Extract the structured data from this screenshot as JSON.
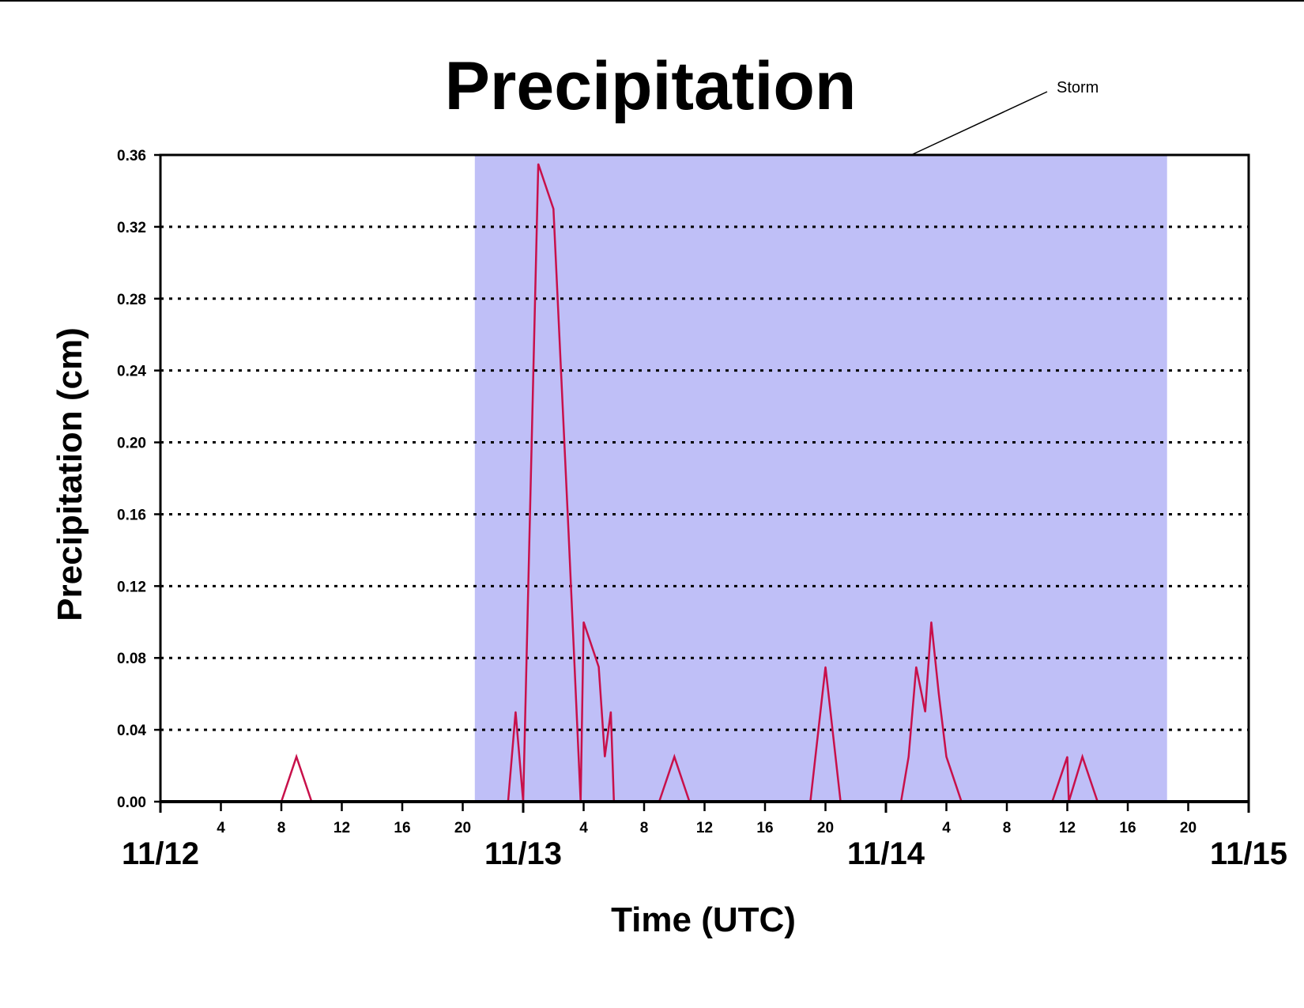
{
  "chart_data": {
    "type": "line",
    "title": "Precipitation",
    "xlabel": "Time (UTC)",
    "ylabel": "Precipitation (cm)",
    "ylim": [
      0,
      0.36
    ],
    "xlim_hours": [
      0,
      72
    ],
    "y_ticks": [
      "0.00",
      "0.04",
      "0.08",
      "0.12",
      "0.16",
      "0.20",
      "0.24",
      "0.28",
      "0.32",
      "0.36"
    ],
    "x_hour_ticks": [
      {
        "hour": 4,
        "label": "4"
      },
      {
        "hour": 8,
        "label": "8"
      },
      {
        "hour": 12,
        "label": "12"
      },
      {
        "hour": 16,
        "label": "16"
      },
      {
        "hour": 20,
        "label": "20"
      },
      {
        "hour": 28,
        "label": "4"
      },
      {
        "hour": 32,
        "label": "8"
      },
      {
        "hour": 36,
        "label": "12"
      },
      {
        "hour": 40,
        "label": "16"
      },
      {
        "hour": 44,
        "label": "20"
      },
      {
        "hour": 52,
        "label": "4"
      },
      {
        "hour": 56,
        "label": "8"
      },
      {
        "hour": 60,
        "label": "12"
      },
      {
        "hour": 64,
        "label": "16"
      },
      {
        "hour": 68,
        "label": "20"
      }
    ],
    "day_labels": [
      {
        "hour": 0,
        "label": "11/12"
      },
      {
        "hour": 24,
        "label": "11/13"
      },
      {
        "hour": 48,
        "label": "11/14"
      },
      {
        "hour": 72,
        "label": "11/15"
      }
    ],
    "grid": "horizontal-dotted",
    "storm_period": {
      "label": "Storm",
      "start_hour": 20.8,
      "end_hour": 66.6,
      "color": "#bfbff7"
    },
    "series": [
      {
        "color": "#c8104a",
        "points": [
          [
            0,
            0
          ],
          [
            8,
            0
          ],
          [
            9,
            0.025
          ],
          [
            10,
            0
          ],
          [
            23,
            0
          ],
          [
            23.5,
            0.05
          ],
          [
            24,
            0
          ],
          [
            25,
            0.355
          ],
          [
            26,
            0.33
          ],
          [
            27,
            0.15
          ],
          [
            27.8,
            0
          ],
          [
            28,
            0.1
          ],
          [
            29,
            0.075
          ],
          [
            29.4,
            0.025
          ],
          [
            29.8,
            0.05
          ],
          [
            30,
            0
          ],
          [
            33,
            0
          ],
          [
            34,
            0.025
          ],
          [
            35,
            0
          ],
          [
            43,
            0
          ],
          [
            44,
            0.075
          ],
          [
            45,
            0
          ],
          [
            49,
            0
          ],
          [
            49.5,
            0.025
          ],
          [
            50,
            0.075
          ],
          [
            50.6,
            0.05
          ],
          [
            51,
            0.1
          ],
          [
            51.5,
            0.06
          ],
          [
            52,
            0.025
          ],
          [
            53,
            0
          ],
          [
            59,
            0
          ],
          [
            60,
            0.025
          ],
          [
            60.1,
            0
          ],
          [
            61,
            0.025
          ],
          [
            62,
            0
          ],
          [
            72,
            0
          ]
        ]
      }
    ]
  }
}
